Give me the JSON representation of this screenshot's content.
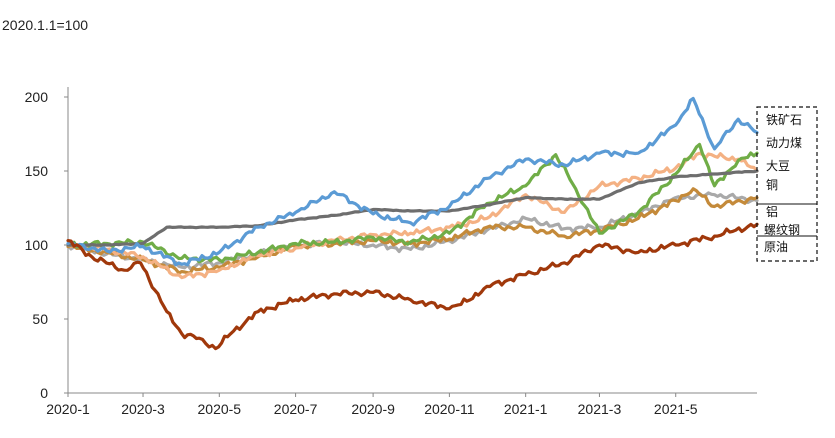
{
  "chart_data": {
    "type": "line",
    "title": "2020.1.1=100",
    "xlabel": "",
    "ylabel": "",
    "ylim": [
      0,
      200
    ],
    "y_ticks": [
      0,
      50,
      100,
      150,
      200
    ],
    "x_ticks": [
      "2020-1",
      "2020-3",
      "2020-5",
      "2020-7",
      "2020-9",
      "2020-11",
      "2021-1",
      "2021-3",
      "2021-5"
    ],
    "x_range": [
      "2020-01-01",
      "2021-07-05"
    ],
    "grid": false,
    "legend_position": "right",
    "series": [
      {
        "name": "铁矿石",
        "color": "#5b9bd5",
        "points": [
          [
            "2020-01-01",
            101
          ],
          [
            "2020-02-01",
            96
          ],
          [
            "2020-03-01",
            99
          ],
          [
            "2020-04-01",
            87
          ],
          [
            "2020-05-01",
            95
          ],
          [
            "2020-06-01",
            112
          ],
          [
            "2020-07-01",
            122
          ],
          [
            "2020-08-01",
            136
          ],
          [
            "2020-09-01",
            121
          ],
          [
            "2020-10-01",
            115
          ],
          [
            "2020-11-01",
            126
          ],
          [
            "2020-12-01",
            145
          ],
          [
            "2021-01-01",
            158
          ],
          [
            "2021-02-01",
            154
          ],
          [
            "2021-03-01",
            162
          ],
          [
            "2021-04-01",
            162
          ],
          [
            "2021-05-01",
            181
          ],
          [
            "2021-05-15",
            199
          ],
          [
            "2021-06-01",
            165
          ],
          [
            "2021-06-20",
            185
          ],
          [
            "2021-07-05",
            176
          ]
        ]
      },
      {
        "name": "动力煤",
        "color": "#f4b183",
        "points": [
          [
            "2020-01-01",
            100
          ],
          [
            "2020-02-01",
            97
          ],
          [
            "2020-03-01",
            92
          ],
          [
            "2020-04-01",
            78
          ],
          [
            "2020-05-01",
            83
          ],
          [
            "2020-06-01",
            93
          ],
          [
            "2020-07-01",
            98
          ],
          [
            "2020-08-01",
            103
          ],
          [
            "2020-09-01",
            107
          ],
          [
            "2020-10-01",
            108
          ],
          [
            "2020-11-01",
            112
          ],
          [
            "2020-12-01",
            118
          ],
          [
            "2021-01-01",
            134
          ],
          [
            "2021-02-01",
            122
          ],
          [
            "2021-03-01",
            140
          ],
          [
            "2021-04-01",
            145
          ],
          [
            "2021-05-01",
            152
          ],
          [
            "2021-05-20",
            162
          ],
          [
            "2021-06-01",
            160
          ],
          [
            "2021-06-20",
            158
          ],
          [
            "2021-07-05",
            150
          ]
        ]
      },
      {
        "name": "大豆",
        "color": "#70ad47",
        "points": [
          [
            "2020-01-01",
            100
          ],
          [
            "2020-02-01",
            101
          ],
          [
            "2020-03-01",
            102
          ],
          [
            "2020-04-01",
            91
          ],
          [
            "2020-05-01",
            90
          ],
          [
            "2020-06-01",
            95
          ],
          [
            "2020-07-01",
            101
          ],
          [
            "2020-08-01",
            102
          ],
          [
            "2020-09-01",
            105
          ],
          [
            "2020-10-01",
            102
          ],
          [
            "2020-11-01",
            108
          ],
          [
            "2020-12-01",
            128
          ],
          [
            "2021-01-01",
            140
          ],
          [
            "2021-01-25",
            161
          ],
          [
            "2021-02-10",
            138
          ],
          [
            "2021-03-01",
            108
          ],
          [
            "2021-04-01",
            122
          ],
          [
            "2021-05-01",
            148
          ],
          [
            "2021-05-20",
            168
          ],
          [
            "2021-06-01",
            140
          ],
          [
            "2021-06-20",
            157
          ],
          [
            "2021-07-05",
            162
          ]
        ]
      },
      {
        "name": "铜",
        "color": "#6e6e6e",
        "points": [
          [
            "2020-01-01",
            100
          ],
          [
            "2020-02-01",
            100
          ],
          [
            "2020-03-01",
            101
          ],
          [
            "2020-03-20",
            112
          ],
          [
            "2020-05-01",
            112
          ],
          [
            "2020-06-01",
            113
          ],
          [
            "2020-07-01",
            117
          ],
          [
            "2020-08-01",
            120
          ],
          [
            "2020-09-01",
            124
          ],
          [
            "2020-10-01",
            123
          ],
          [
            "2020-11-01",
            123
          ],
          [
            "2020-12-01",
            127
          ],
          [
            "2021-01-01",
            132
          ],
          [
            "2021-02-01",
            131
          ],
          [
            "2021-03-01",
            131
          ],
          [
            "2021-04-01",
            142
          ],
          [
            "2021-05-01",
            146
          ],
          [
            "2021-06-01",
            148
          ],
          [
            "2021-07-05",
            150
          ]
        ]
      },
      {
        "name": "铝",
        "color": "#a9a9a9",
        "points": [
          [
            "2020-01-01",
            100
          ],
          [
            "2020-02-01",
            94
          ],
          [
            "2020-03-01",
            90
          ],
          [
            "2020-04-01",
            85
          ],
          [
            "2020-05-01",
            88
          ],
          [
            "2020-06-01",
            94
          ],
          [
            "2020-07-01",
            100
          ],
          [
            "2020-08-01",
            102
          ],
          [
            "2020-09-01",
            100
          ],
          [
            "2020-10-01",
            97
          ],
          [
            "2020-11-01",
            103
          ],
          [
            "2020-12-01",
            110
          ],
          [
            "2021-01-01",
            118
          ],
          [
            "2021-02-01",
            111
          ],
          [
            "2021-03-01",
            112
          ],
          [
            "2021-04-01",
            121
          ],
          [
            "2021-05-01",
            132
          ],
          [
            "2021-06-01",
            134
          ],
          [
            "2021-07-05",
            130
          ]
        ]
      },
      {
        "name": "螺纹钢",
        "color": "#c48a3a",
        "points": [
          [
            "2020-01-01",
            99
          ],
          [
            "2020-02-01",
            95
          ],
          [
            "2020-03-01",
            90
          ],
          [
            "2020-04-01",
            82
          ],
          [
            "2020-05-01",
            85
          ],
          [
            "2020-06-01",
            92
          ],
          [
            "2020-07-01",
            99
          ],
          [
            "2020-08-01",
            101
          ],
          [
            "2020-09-01",
            103
          ],
          [
            "2020-10-01",
            101
          ],
          [
            "2020-11-01",
            104
          ],
          [
            "2020-12-01",
            112
          ],
          [
            "2021-01-01",
            112
          ],
          [
            "2021-02-01",
            106
          ],
          [
            "2021-03-01",
            110
          ],
          [
            "2021-04-01",
            118
          ],
          [
            "2021-05-01",
            130
          ],
          [
            "2021-05-15",
            138
          ],
          [
            "2021-06-01",
            126
          ],
          [
            "2021-07-05",
            132
          ]
        ]
      },
      {
        "name": "原油",
        "color": "#a0380b",
        "points": [
          [
            "2020-01-01",
            103
          ],
          [
            "2020-01-20",
            92
          ],
          [
            "2020-02-15",
            83
          ],
          [
            "2020-02-28",
            88
          ],
          [
            "2020-03-20",
            55
          ],
          [
            "2020-04-01",
            40
          ],
          [
            "2020-04-15",
            37
          ],
          [
            "2020-04-28",
            30
          ],
          [
            "2020-05-10",
            40
          ],
          [
            "2020-06-01",
            55
          ],
          [
            "2020-07-01",
            63
          ],
          [
            "2020-08-01",
            67
          ],
          [
            "2020-09-01",
            68
          ],
          [
            "2020-10-01",
            63
          ],
          [
            "2020-11-01",
            57
          ],
          [
            "2020-11-15",
            62
          ],
          [
            "2020-12-01",
            72
          ],
          [
            "2021-01-01",
            80
          ],
          [
            "2021-02-01",
            88
          ],
          [
            "2021-03-01",
            100
          ],
          [
            "2021-04-01",
            95
          ],
          [
            "2021-05-01",
            100
          ],
          [
            "2021-06-01",
            106
          ],
          [
            "2021-07-05",
            114
          ]
        ]
      }
    ]
  }
}
